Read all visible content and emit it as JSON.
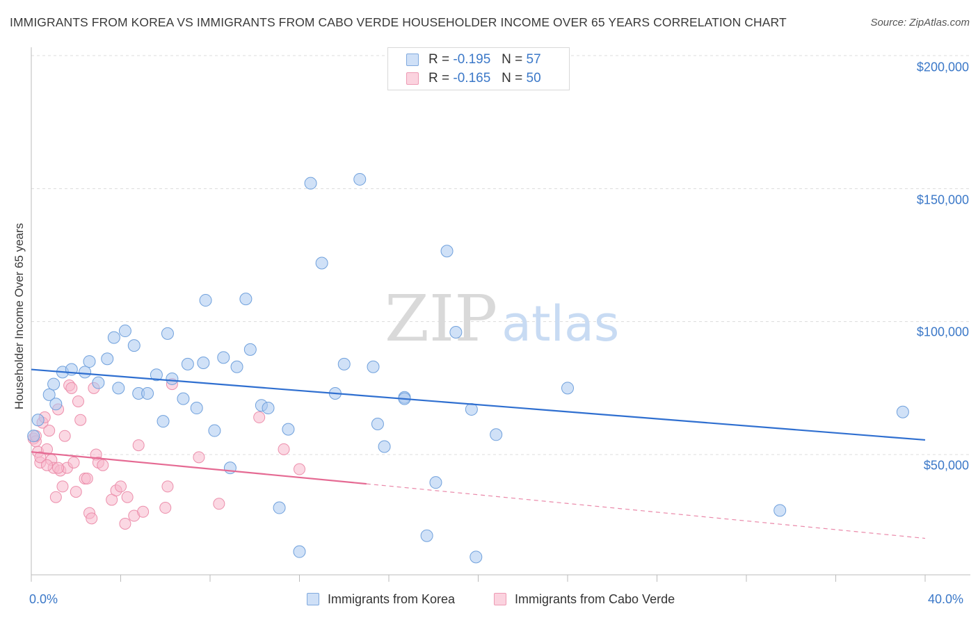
{
  "title": "IMMIGRANTS FROM KOREA VS IMMIGRANTS FROM CABO VERDE HOUSEHOLDER INCOME OVER 65 YEARS CORRELATION CHART",
  "source": "Source: ZipAtlas.com",
  "watermark": {
    "part1": "ZIP",
    "part2": "atlas"
  },
  "legend_top": {
    "rows": [
      {
        "r_label": "R =",
        "r_value": "-0.195",
        "n_label": "N =",
        "n_value": "57",
        "color": "#a9c8f0"
      },
      {
        "r_label": "R =",
        "r_value": "-0.165",
        "n_label": "N =",
        "n_value": "50",
        "color": "#f7b8cc"
      }
    ]
  },
  "legend_bottom": [
    {
      "label": "Immigrants from Korea",
      "color": "#a9c8f0"
    },
    {
      "label": "Immigrants from Cabo Verde",
      "color": "#f7b8cc"
    }
  ],
  "chart_data": {
    "type": "scatter",
    "title": "IMMIGRANTS FROM KOREA VS IMMIGRANTS FROM CABO VERDE HOUSEHOLDER INCOME OVER 65 YEARS CORRELATION CHART",
    "xlabel": "",
    "ylabel": "Householder Income Over 65 years",
    "xlim": [
      0,
      40
    ],
    "ylim": [
      5000,
      210000
    ],
    "x_tick_labels": [
      "0.0%",
      "40.0%"
    ],
    "y_ticks": [
      50000,
      100000,
      150000,
      200000
    ],
    "y_tick_labels": [
      "$50,000",
      "$100,000",
      "$150,000",
      "$200,000"
    ],
    "grid": true,
    "legend_position": "top-center",
    "series": [
      {
        "name": "Immigrants from Korea",
        "color": "#6fa0dc",
        "fill": "#a9c8f0",
        "trend": {
          "x": [
            0,
            40
          ],
          "y": [
            82000,
            55500
          ],
          "style": "solid",
          "color": "#2f6fd0"
        },
        "points": [
          [
            0.3,
            63000
          ],
          [
            0.8,
            72500
          ],
          [
            1.0,
            76500
          ],
          [
            1.1,
            69000
          ],
          [
            1.4,
            81000
          ],
          [
            1.8,
            82000
          ],
          [
            2.4,
            81000
          ],
          [
            2.6,
            85000
          ],
          [
            3.0,
            77000
          ],
          [
            3.4,
            86000
          ],
          [
            3.7,
            94000
          ],
          [
            3.9,
            75000
          ],
          [
            4.2,
            96500
          ],
          [
            4.6,
            91000
          ],
          [
            4.8,
            73000
          ],
          [
            5.2,
            73000
          ],
          [
            5.6,
            80000
          ],
          [
            5.9,
            62500
          ],
          [
            6.1,
            95500
          ],
          [
            6.3,
            78500
          ],
          [
            6.8,
            71000
          ],
          [
            7.0,
            84000
          ],
          [
            7.4,
            67500
          ],
          [
            7.7,
            84500
          ],
          [
            7.8,
            108000
          ],
          [
            8.2,
            59000
          ],
          [
            8.6,
            86500
          ],
          [
            8.9,
            45000
          ],
          [
            9.2,
            83000
          ],
          [
            9.6,
            108500
          ],
          [
            9.8,
            89500
          ],
          [
            10.3,
            68500
          ],
          [
            10.6,
            67500
          ],
          [
            11.1,
            30000
          ],
          [
            11.5,
            59500
          ],
          [
            12.0,
            13500
          ],
          [
            12.5,
            152000
          ],
          [
            13.0,
            122000
          ],
          [
            13.6,
            73000
          ],
          [
            14.0,
            84000
          ],
          [
            14.7,
            153500
          ],
          [
            15.3,
            83000
          ],
          [
            15.5,
            61500
          ],
          [
            15.8,
            53000
          ],
          [
            16.7,
            71500
          ],
          [
            16.7,
            71000
          ],
          [
            17.7,
            19500
          ],
          [
            18.1,
            39500
          ],
          [
            18.6,
            126500
          ],
          [
            19.0,
            96000
          ],
          [
            19.7,
            67000
          ],
          [
            19.9,
            11500
          ],
          [
            20.8,
            57500
          ],
          [
            24.0,
            75000
          ],
          [
            33.5,
            29000
          ],
          [
            39.0,
            66000
          ],
          [
            0.1,
            57000
          ]
        ]
      },
      {
        "name": "Immigrants from Cabo Verde",
        "color": "#ec8eab",
        "fill": "#f7b8cc",
        "trend": {
          "x": [
            0,
            15
          ],
          "y": [
            51000,
            39000
          ],
          "style": "solid",
          "dashed_extension_to": [
            40,
            18500
          ],
          "color": "#e56a93"
        },
        "points": [
          [
            0.1,
            56000
          ],
          [
            0.2,
            55000
          ],
          [
            0.3,
            51000
          ],
          [
            0.4,
            47000
          ],
          [
            0.5,
            62000
          ],
          [
            0.6,
            64000
          ],
          [
            0.7,
            52000
          ],
          [
            0.8,
            59000
          ],
          [
            0.9,
            48000
          ],
          [
            1.0,
            45000
          ],
          [
            1.1,
            34000
          ],
          [
            1.2,
            67000
          ],
          [
            1.3,
            44000
          ],
          [
            1.4,
            38000
          ],
          [
            1.5,
            57000
          ],
          [
            1.6,
            45000
          ],
          [
            1.7,
            76000
          ],
          [
            1.8,
            75000
          ],
          [
            1.9,
            47000
          ],
          [
            2.0,
            36000
          ],
          [
            2.1,
            70000
          ],
          [
            2.2,
            63000
          ],
          [
            2.4,
            41000
          ],
          [
            2.5,
            41000
          ],
          [
            2.6,
            28000
          ],
          [
            2.7,
            26000
          ],
          [
            2.8,
            75000
          ],
          [
            2.9,
            50000
          ],
          [
            3.0,
            47000
          ],
          [
            3.2,
            46000
          ],
          [
            3.6,
            33000
          ],
          [
            3.8,
            36500
          ],
          [
            4.0,
            38000
          ],
          [
            4.2,
            24000
          ],
          [
            4.3,
            34000
          ],
          [
            4.6,
            27000
          ],
          [
            4.8,
            53500
          ],
          [
            5.0,
            28500
          ],
          [
            6.0,
            30000
          ],
          [
            6.1,
            38000
          ],
          [
            6.3,
            76500
          ],
          [
            7.5,
            49000
          ],
          [
            8.4,
            31500
          ],
          [
            10.2,
            64000
          ],
          [
            11.3,
            52000
          ],
          [
            12.0,
            44500
          ],
          [
            0.2,
            57000
          ],
          [
            0.4,
            49000
          ],
          [
            0.7,
            46000
          ],
          [
            1.2,
            45000
          ]
        ]
      }
    ]
  }
}
